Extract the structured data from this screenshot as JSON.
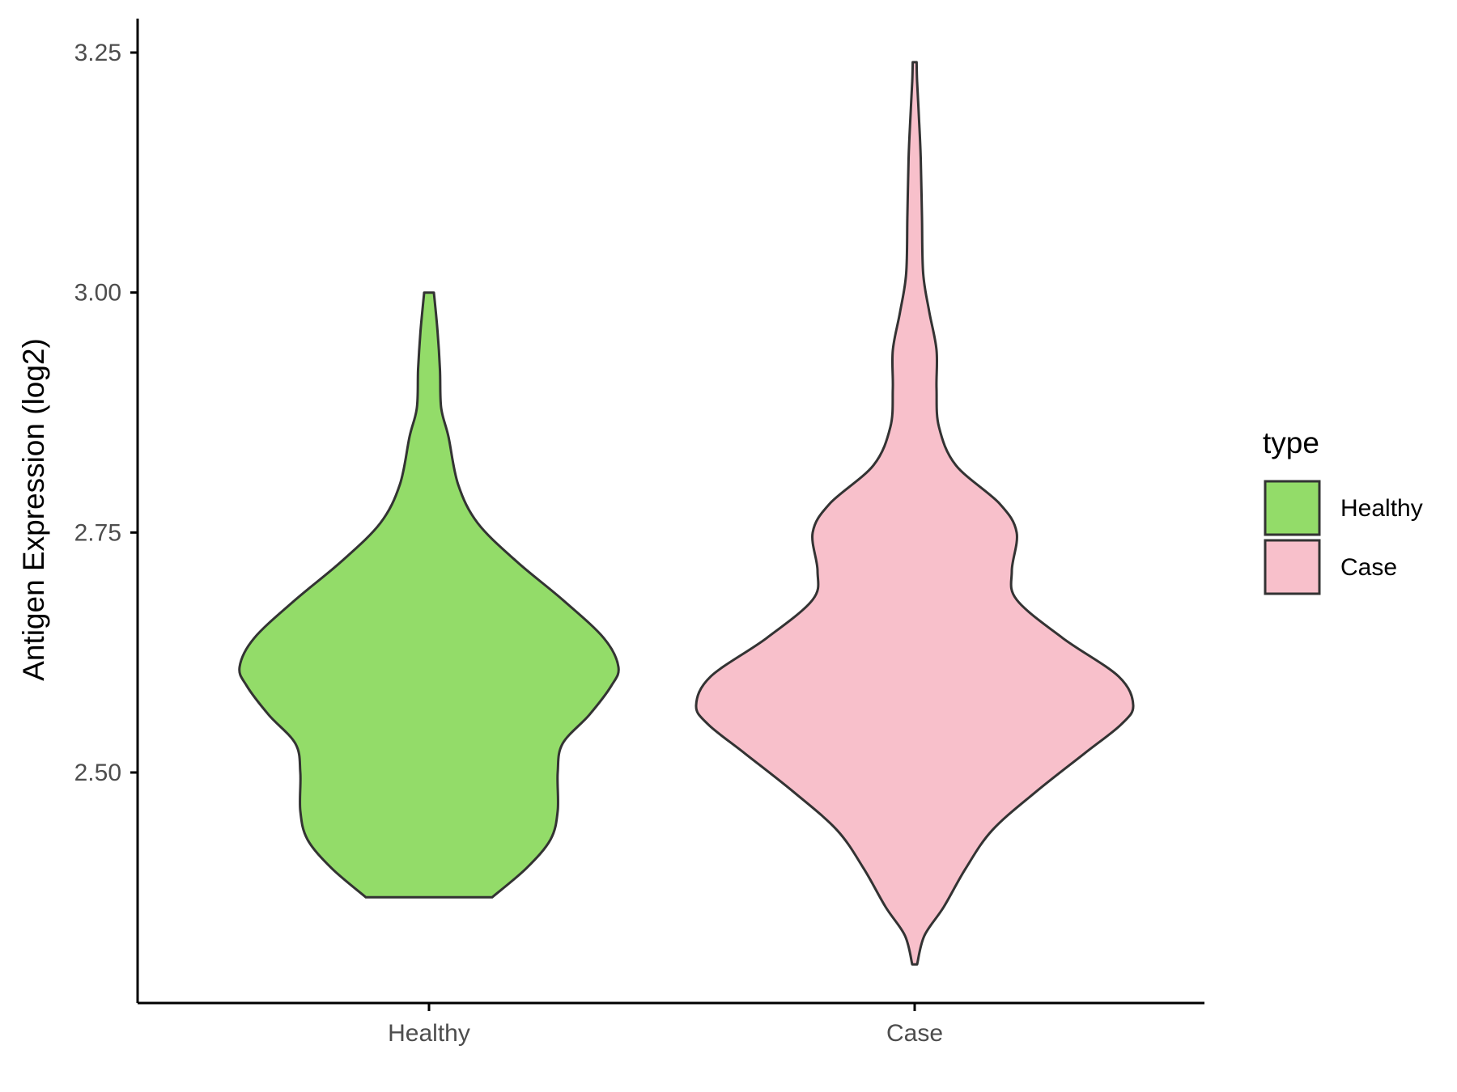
{
  "chart_data": {
    "type": "violin",
    "title": "",
    "xlabel": "",
    "ylabel": "Antigen Expression (log2)",
    "categories": [
      "Healthy",
      "Case"
    ],
    "ylim": [
      2.3,
      3.285
    ],
    "yticks": [
      "2.50",
      "2.75",
      "3.00",
      "3.25"
    ],
    "ytick_values": [
      2.5,
      2.75,
      3.0,
      3.25
    ],
    "grid": false,
    "legend": {
      "title": "type",
      "position": "right",
      "entries": [
        {
          "label": "Healthy",
          "color": "#93dc69"
        },
        {
          "label": "Case",
          "color": "#f8c0cb"
        }
      ]
    },
    "series": [
      {
        "name": "Healthy",
        "color": "#93dc69",
        "min": 2.37,
        "max": 3.0,
        "density_profile": [
          {
            "y": 2.37,
            "half_width": 0.26
          },
          {
            "y": 2.4,
            "half_width": 0.4
          },
          {
            "y": 2.43,
            "half_width": 0.5
          },
          {
            "y": 2.46,
            "half_width": 0.53
          },
          {
            "y": 2.5,
            "half_width": 0.53
          },
          {
            "y": 2.53,
            "half_width": 0.55
          },
          {
            "y": 2.56,
            "half_width": 0.66
          },
          {
            "y": 2.59,
            "half_width": 0.75
          },
          {
            "y": 2.61,
            "half_width": 0.78
          },
          {
            "y": 2.64,
            "half_width": 0.72
          },
          {
            "y": 2.68,
            "half_width": 0.55
          },
          {
            "y": 2.72,
            "half_width": 0.36
          },
          {
            "y": 2.76,
            "half_width": 0.2
          },
          {
            "y": 2.8,
            "half_width": 0.12
          },
          {
            "y": 2.85,
            "half_width": 0.08
          },
          {
            "y": 2.88,
            "half_width": 0.05
          },
          {
            "y": 2.92,
            "half_width": 0.045
          },
          {
            "y": 2.96,
            "half_width": 0.035
          },
          {
            "y": 3.0,
            "half_width": 0.02
          }
        ]
      },
      {
        "name": "Case",
        "color": "#f8c0cb",
        "min": 2.3,
        "max": 3.24,
        "density_profile": [
          {
            "y": 2.3,
            "half_width": 0.01
          },
          {
            "y": 2.33,
            "half_width": 0.04
          },
          {
            "y": 2.36,
            "half_width": 0.12
          },
          {
            "y": 2.4,
            "half_width": 0.21
          },
          {
            "y": 2.44,
            "half_width": 0.32
          },
          {
            "y": 2.48,
            "half_width": 0.5
          },
          {
            "y": 2.52,
            "half_width": 0.7
          },
          {
            "y": 2.55,
            "half_width": 0.85
          },
          {
            "y": 2.57,
            "half_width": 0.9
          },
          {
            "y": 2.6,
            "half_width": 0.84
          },
          {
            "y": 2.64,
            "half_width": 0.61
          },
          {
            "y": 2.68,
            "half_width": 0.42
          },
          {
            "y": 2.71,
            "half_width": 0.4
          },
          {
            "y": 2.75,
            "half_width": 0.42
          },
          {
            "y": 2.78,
            "half_width": 0.35
          },
          {
            "y": 2.82,
            "half_width": 0.17
          },
          {
            "y": 2.86,
            "half_width": 0.1
          },
          {
            "y": 2.9,
            "half_width": 0.09
          },
          {
            "y": 2.94,
            "half_width": 0.09
          },
          {
            "y": 2.98,
            "half_width": 0.06
          },
          {
            "y": 3.02,
            "half_width": 0.035
          },
          {
            "y": 3.08,
            "half_width": 0.03
          },
          {
            "y": 3.14,
            "half_width": 0.025
          },
          {
            "y": 3.18,
            "half_width": 0.018
          },
          {
            "y": 3.22,
            "half_width": 0.01
          },
          {
            "y": 3.24,
            "half_width": 0.008
          }
        ]
      }
    ]
  }
}
